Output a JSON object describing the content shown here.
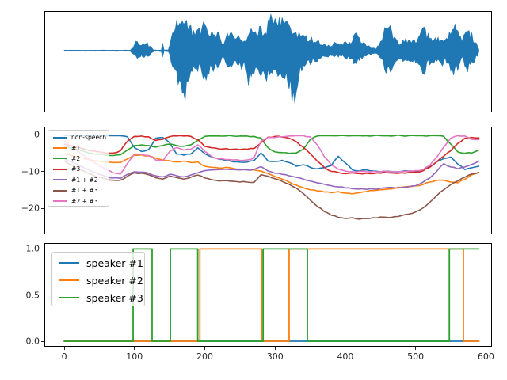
{
  "figure": {
    "background": "#ffffff"
  },
  "colors": {
    "blue": "#1f77b4",
    "orange": "#ff7f0e",
    "green": "#2ca02c",
    "red": "#d62728",
    "purple": "#9467bd",
    "brown": "#8c564b",
    "pink": "#e377c2",
    "waveform": "#1f77b4",
    "spine": "#000000",
    "tick_text": "#262626"
  },
  "axes_ticks": {
    "x_ticks": {
      "values": [
        0,
        100,
        200,
        300,
        400,
        500,
        600
      ],
      "labels": [
        "0",
        "100",
        "200",
        "300",
        "400",
        "500",
        "600"
      ]
    },
    "likelihood_y_ticks": {
      "values": [
        0,
        -10,
        -20
      ],
      "labels": [
        "0",
        "−10",
        "−20"
      ]
    },
    "activation_y_ticks": {
      "values": [
        1.0,
        0.5,
        0.0
      ],
      "labels": [
        "1.0",
        "0.5",
        "0.0"
      ]
    }
  },
  "chart_data": [
    {
      "type": "area",
      "name": "audio-waveform",
      "x_range": [
        0,
        590
      ],
      "color": "#1f77b4",
      "envelope_keypoints": [
        [
          0,
          0.015,
          0.015
        ],
        [
          94,
          0.015,
          0.015
        ],
        [
          98,
          0.1,
          0.1
        ],
        [
          103,
          0.25,
          0.22
        ],
        [
          110,
          0.18,
          0.16
        ],
        [
          118,
          0.21,
          0.18
        ],
        [
          124,
          0.08,
          0.08
        ],
        [
          127,
          0.02,
          0.02
        ],
        [
          138,
          0.02,
          0.02
        ],
        [
          140,
          0.28,
          0.22
        ],
        [
          142,
          0.02,
          0.02
        ],
        [
          149,
          0.03,
          0.03
        ],
        [
          153,
          0.45,
          0.4
        ],
        [
          157,
          0.7,
          0.6
        ],
        [
          161,
          0.88,
          0.8
        ],
        [
          165,
          0.94,
          1.25
        ],
        [
          168,
          0.85,
          1.55
        ],
        [
          172,
          0.75,
          1.2
        ],
        [
          176,
          0.78,
          0.75
        ],
        [
          182,
          0.55,
          0.58
        ],
        [
          188,
          0.45,
          0.5
        ],
        [
          193,
          0.62,
          0.55
        ],
        [
          198,
          0.74,
          0.65
        ],
        [
          203,
          0.55,
          0.75
        ],
        [
          208,
          0.4,
          0.45
        ],
        [
          214,
          0.6,
          0.55
        ],
        [
          220,
          0.45,
          0.4
        ],
        [
          226,
          0.2,
          0.2
        ],
        [
          232,
          0.45,
          0.4
        ],
        [
          238,
          0.55,
          0.5
        ],
        [
          244,
          0.35,
          0.35
        ],
        [
          250,
          0.45,
          0.5
        ],
        [
          256,
          0.3,
          0.3
        ],
        [
          262,
          0.55,
          0.92
        ],
        [
          268,
          0.5,
          0.55
        ],
        [
          274,
          0.6,
          0.68
        ],
        [
          280,
          0.7,
          0.6
        ],
        [
          286,
          0.45,
          0.78
        ],
        [
          292,
          0.85,
          0.6
        ],
        [
          298,
          0.9,
          0.55
        ],
        [
          304,
          0.7,
          0.6
        ],
        [
          310,
          0.9,
          0.65
        ],
        [
          316,
          0.95,
          0.7
        ],
        [
          322,
          0.6,
          1.05
        ],
        [
          327,
          0.5,
          1.48
        ],
        [
          332,
          0.45,
          0.88
        ],
        [
          338,
          0.45,
          0.5
        ],
        [
          344,
          0.4,
          0.4
        ],
        [
          350,
          0.35,
          0.35
        ],
        [
          356,
          0.3,
          0.28
        ],
        [
          362,
          0.25,
          0.25
        ],
        [
          368,
          0.18,
          0.18
        ],
        [
          376,
          0.15,
          0.15
        ],
        [
          384,
          0.2,
          0.18
        ],
        [
          392,
          0.18,
          0.16
        ],
        [
          400,
          0.22,
          0.2
        ],
        [
          408,
          0.25,
          0.22
        ],
        [
          414,
          0.5,
          0.45
        ],
        [
          420,
          0.3,
          0.28
        ],
        [
          428,
          0.18,
          0.16
        ],
        [
          436,
          0.1,
          0.1
        ],
        [
          444,
          0.06,
          0.06
        ],
        [
          452,
          0.3,
          0.28
        ],
        [
          458,
          0.7,
          0.8
        ],
        [
          464,
          0.6,
          0.55
        ],
        [
          470,
          0.4,
          0.38
        ],
        [
          476,
          0.25,
          0.22
        ],
        [
          482,
          0.28,
          0.26
        ],
        [
          490,
          0.32,
          0.3
        ],
        [
          498,
          0.28,
          0.25
        ],
        [
          506,
          0.45,
          0.4
        ],
        [
          512,
          0.55,
          0.6
        ],
        [
          518,
          0.4,
          0.38
        ],
        [
          524,
          0.3,
          0.28
        ],
        [
          530,
          0.38,
          0.34
        ],
        [
          536,
          0.3,
          0.4
        ],
        [
          542,
          0.28,
          0.26
        ],
        [
          548,
          0.45,
          0.4
        ],
        [
          554,
          0.65,
          0.72
        ],
        [
          560,
          0.55,
          0.5
        ],
        [
          566,
          0.25,
          0.22
        ],
        [
          572,
          0.55,
          0.5
        ],
        [
          578,
          0.5,
          0.55
        ],
        [
          584,
          0.3,
          0.28
        ],
        [
          588,
          0.15,
          0.14
        ],
        [
          590,
          0.04,
          0.04
        ]
      ]
    },
    {
      "type": "line",
      "name": "log-likelihood-curves",
      "x_start": 0,
      "x_step": 10,
      "ylim": [
        -26.9,
        1.9
      ],
      "legend_position": "upper-left",
      "series": [
        {
          "name": "non-speech",
          "color": "#1f77b4",
          "y": [
            -0.2,
            -0.3,
            -0.3,
            -0.3,
            -0.3,
            -0.3,
            -0.3,
            -0.3,
            -0.3,
            -0.6,
            -3.6,
            -4.6,
            -4.1,
            -1.0,
            -0.8,
            -2.2,
            -5.3,
            -5.6,
            -5.3,
            -3.6,
            -5.2,
            -6.1,
            -6.7,
            -7.1,
            -7.4,
            -7.5,
            -7.5,
            -7.1,
            -5.0,
            -7.2,
            -7.3,
            -7.0,
            -7.6,
            -8.6,
            -8.2,
            -8.9,
            -9.3,
            -9.0,
            -8.4,
            -5.9,
            -7.7,
            -9.6,
            -9.9,
            -9.6,
            -9.9,
            -10.1,
            -9.9,
            -10.1,
            -10.0,
            -9.9,
            -10.0,
            -9.6,
            -8.8,
            -7.4,
            -6.5,
            -6.1,
            -8.0,
            -9.5,
            -9.0,
            -8.6
          ]
        },
        {
          "name": "#1",
          "color": "#ff7f0e",
          "y": [
            -5.2,
            -5.7,
            -6.2,
            -6.6,
            -7.0,
            -7.3,
            -7.5,
            -7.6,
            -7.6,
            -6.6,
            -5.6,
            -5.5,
            -5.8,
            -6.4,
            -6.9,
            -7.1,
            -7.4,
            -7.2,
            -7.6,
            -7.4,
            -8.6,
            -8.9,
            -9.1,
            -8.9,
            -9.2,
            -9.4,
            -9.4,
            -9.6,
            -9.9,
            -10.6,
            -11.4,
            -12.1,
            -12.9,
            -13.7,
            -14.4,
            -15.0,
            -15.3,
            -15.6,
            -15.8,
            -15.5,
            -15.9,
            -16.1,
            -15.8,
            -15.5,
            -15.2,
            -15.0,
            -14.8,
            -14.6,
            -14.3,
            -14.1,
            -13.9,
            -13.6,
            -12.9,
            -12.4,
            -12.4,
            -12.9,
            -13.1,
            -12.2,
            -10.9,
            -10.4
          ]
        },
        {
          "name": "#2",
          "color": "#2ca02c",
          "y": [
            -3.2,
            -3.7,
            -4.2,
            -4.7,
            -5.1,
            -5.4,
            -5.6,
            -5.7,
            -5.5,
            -4.2,
            -3.0,
            -2.8,
            -3.0,
            -3.4,
            -3.0,
            -2.6,
            -3.0,
            -3.2,
            -2.8,
            -1.6,
            -0.5,
            -0.4,
            -0.4,
            -0.4,
            -0.4,
            -0.4,
            -0.4,
            -0.5,
            -0.9,
            -3.6,
            -4.7,
            -4.9,
            -5.1,
            -5.0,
            -4.0,
            -1.4,
            -0.4,
            -0.3,
            -0.3,
            -0.3,
            -0.3,
            -0.3,
            -0.3,
            -0.3,
            -0.3,
            -0.3,
            -0.3,
            -0.3,
            -0.3,
            -0.3,
            -0.3,
            -0.3,
            -0.3,
            -0.3,
            -0.5,
            -2.6,
            -4.7,
            -5.1,
            -5.0,
            -4.2
          ]
        },
        {
          "name": "#3",
          "color": "#d62728",
          "y": [
            -2.6,
            -3.0,
            -3.5,
            -4.0,
            -4.4,
            -4.7,
            -5.0,
            -5.0,
            -4.4,
            -1.8,
            -0.5,
            -0.4,
            -0.6,
            -1.6,
            -1.3,
            -0.6,
            -0.4,
            -0.4,
            -0.5,
            -1.4,
            -3.2,
            -3.6,
            -3.9,
            -3.8,
            -4.0,
            -4.1,
            -4.0,
            -3.8,
            -2.2,
            -0.7,
            -0.5,
            -0.7,
            -1.0,
            -1.9,
            -3.4,
            -5.2,
            -7.2,
            -8.9,
            -10.0,
            -10.3,
            -10.6,
            -10.4,
            -10.6,
            -10.5,
            -10.6,
            -10.5,
            -10.4,
            -10.5,
            -10.4,
            -10.3,
            -10.2,
            -9.9,
            -8.9,
            -7.4,
            -5.9,
            -4.4,
            -2.4,
            -1.0,
            -0.8,
            -0.9
          ]
        },
        {
          "name": "#1 + #2",
          "color": "#9467bd",
          "y": [
            -6.5,
            -7.4,
            -8.3,
            -9.2,
            -10.1,
            -10.8,
            -11.4,
            -11.8,
            -11.9,
            -10.8,
            -10.1,
            -10.2,
            -10.5,
            -11.2,
            -11.5,
            -10.8,
            -11.2,
            -11.5,
            -11.0,
            -10.4,
            -9.8,
            -9.6,
            -9.5,
            -9.4,
            -9.5,
            -9.6,
            -9.6,
            -9.5,
            -8.7,
            -9.9,
            -10.5,
            -10.8,
            -11.2,
            -11.6,
            -12.1,
            -12.6,
            -13.1,
            -13.5,
            -13.9,
            -14.2,
            -14.5,
            -14.7,
            -14.8,
            -14.9,
            -14.8,
            -14.6,
            -14.4,
            -14.5,
            -14.4,
            -14.2,
            -13.9,
            -13.0,
            -11.8,
            -10.0,
            -7.9,
            -8.8,
            -9.3,
            -8.8,
            -8.1,
            -7.2
          ]
        },
        {
          "name": "#1 + #3",
          "color": "#8c564b",
          "y": [
            -7.2,
            -8.2,
            -9.2,
            -10.1,
            -10.9,
            -11.6,
            -12.1,
            -12.4,
            -12.4,
            -11.3,
            -10.4,
            -10.5,
            -10.9,
            -11.7,
            -12.1,
            -11.3,
            -11.7,
            -12.1,
            -11.6,
            -11.0,
            -11.8,
            -12.3,
            -12.6,
            -12.5,
            -12.7,
            -12.9,
            -12.9,
            -13.0,
            -10.9,
            -11.3,
            -12.0,
            -12.7,
            -13.5,
            -14.5,
            -16.0,
            -17.8,
            -19.5,
            -20.9,
            -21.9,
            -22.5,
            -22.8,
            -22.6,
            -23.0,
            -22.8,
            -22.6,
            -22.4,
            -22.5,
            -22.3,
            -22.0,
            -21.6,
            -21.0,
            -20.0,
            -18.4,
            -16.6,
            -15.0,
            -13.6,
            -12.6,
            -11.6,
            -10.7,
            -10.3
          ]
        },
        {
          "name": "#2 + #3",
          "color": "#e377c2",
          "y": [
            -1.8,
            -3.2,
            -4.6,
            -6.0,
            -7.3,
            -8.5,
            -9.6,
            -10.4,
            -10.7,
            -7.8,
            -5.3,
            -5.4,
            -5.7,
            -6.9,
            -7.2,
            -4.6,
            -3.5,
            -4.2,
            -4.0,
            -2.8,
            -4.6,
            -6.0,
            -6.6,
            -6.8,
            -6.9,
            -7.0,
            -6.9,
            -6.4,
            -1.8,
            -0.8,
            -0.8,
            -0.6,
            -0.4,
            -0.3,
            -0.3,
            -0.6,
            -2.8,
            -6.0,
            -8.2,
            -9.4,
            -9.9,
            -10.1,
            -10.0,
            -10.1,
            -10.0,
            -10.1,
            -10.0,
            -10.1,
            -10.0,
            -9.9,
            -9.8,
            -9.6,
            -8.4,
            -6.2,
            -3.4,
            -1.0,
            -0.3,
            -0.4,
            -1.3,
            -1.4
          ]
        }
      ]
    },
    {
      "type": "line",
      "name": "speaker-activations",
      "step": true,
      "ylim": [
        -0.05,
        1.05
      ],
      "legend_position": "upper-left",
      "series": [
        {
          "name": "speaker #1",
          "color": "#1f77b4",
          "segments": [
            [
              0,
              590,
              0
            ]
          ]
        },
        {
          "name": "speaker #2",
          "color": "#ff7f0e",
          "segments": [
            [
              0,
              193,
              0
            ],
            [
              193,
              281,
              1
            ],
            [
              281,
              320,
              0
            ],
            [
              320,
              568,
              1
            ],
            [
              568,
              590,
              0
            ]
          ]
        },
        {
          "name": "speaker #3",
          "color": "#2ca02c",
          "segments": [
            [
              0,
              98,
              0
            ],
            [
              98,
              125,
              1
            ],
            [
              125,
              151,
              0
            ],
            [
              151,
              190,
              1
            ],
            [
              190,
              283,
              0
            ],
            [
              283,
              346,
              1
            ],
            [
              346,
              548,
              0
            ],
            [
              548,
              590,
              1
            ]
          ]
        }
      ]
    }
  ]
}
